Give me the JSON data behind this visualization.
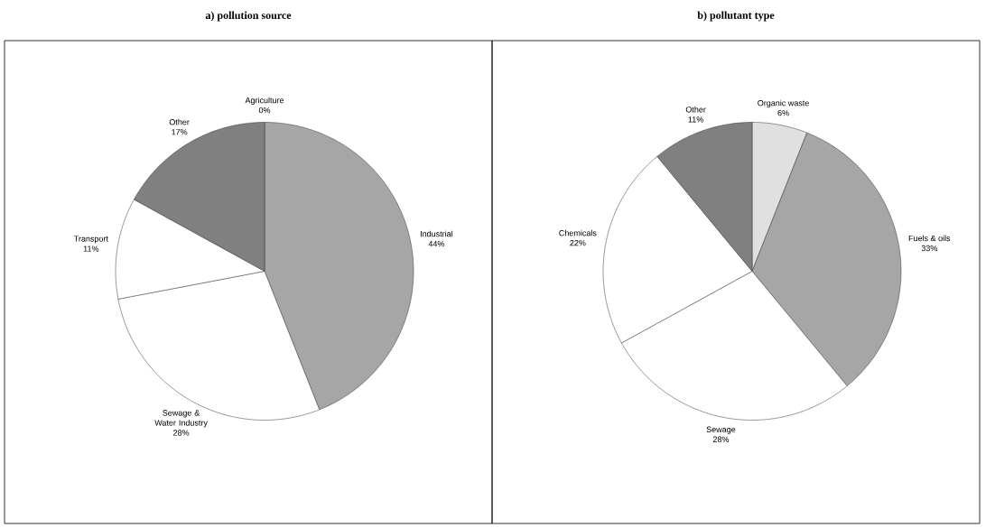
{
  "chart_data": [
    {
      "type": "pie",
      "title": "a) pollution source",
      "categories": [
        "Industrial",
        "Sewage & Water Industry",
        "Transport",
        "Other",
        "Agriculture"
      ],
      "values": [
        44,
        28,
        11,
        17,
        0
      ],
      "colors": [
        "#a6a6a6",
        "#ffffff",
        "#ffffff",
        "#808080",
        "#d9d9d9"
      ],
      "value_labels": [
        "44%",
        "28%",
        "11%",
        "17%",
        "0%"
      ]
    },
    {
      "type": "pie",
      "title": "b) pollutant type",
      "categories": [
        "Organic waste",
        "Fuels & oils",
        "Sewage",
        "Chemicals",
        "Other"
      ],
      "values": [
        6,
        33,
        28,
        22,
        11
      ],
      "colors": [
        "#e0e0e0",
        "#a6a6a6",
        "#ffffff",
        "#ffffff",
        "#808080"
      ],
      "value_labels": [
        "6%",
        "33%",
        "28%",
        "22%",
        "11%"
      ]
    }
  ]
}
